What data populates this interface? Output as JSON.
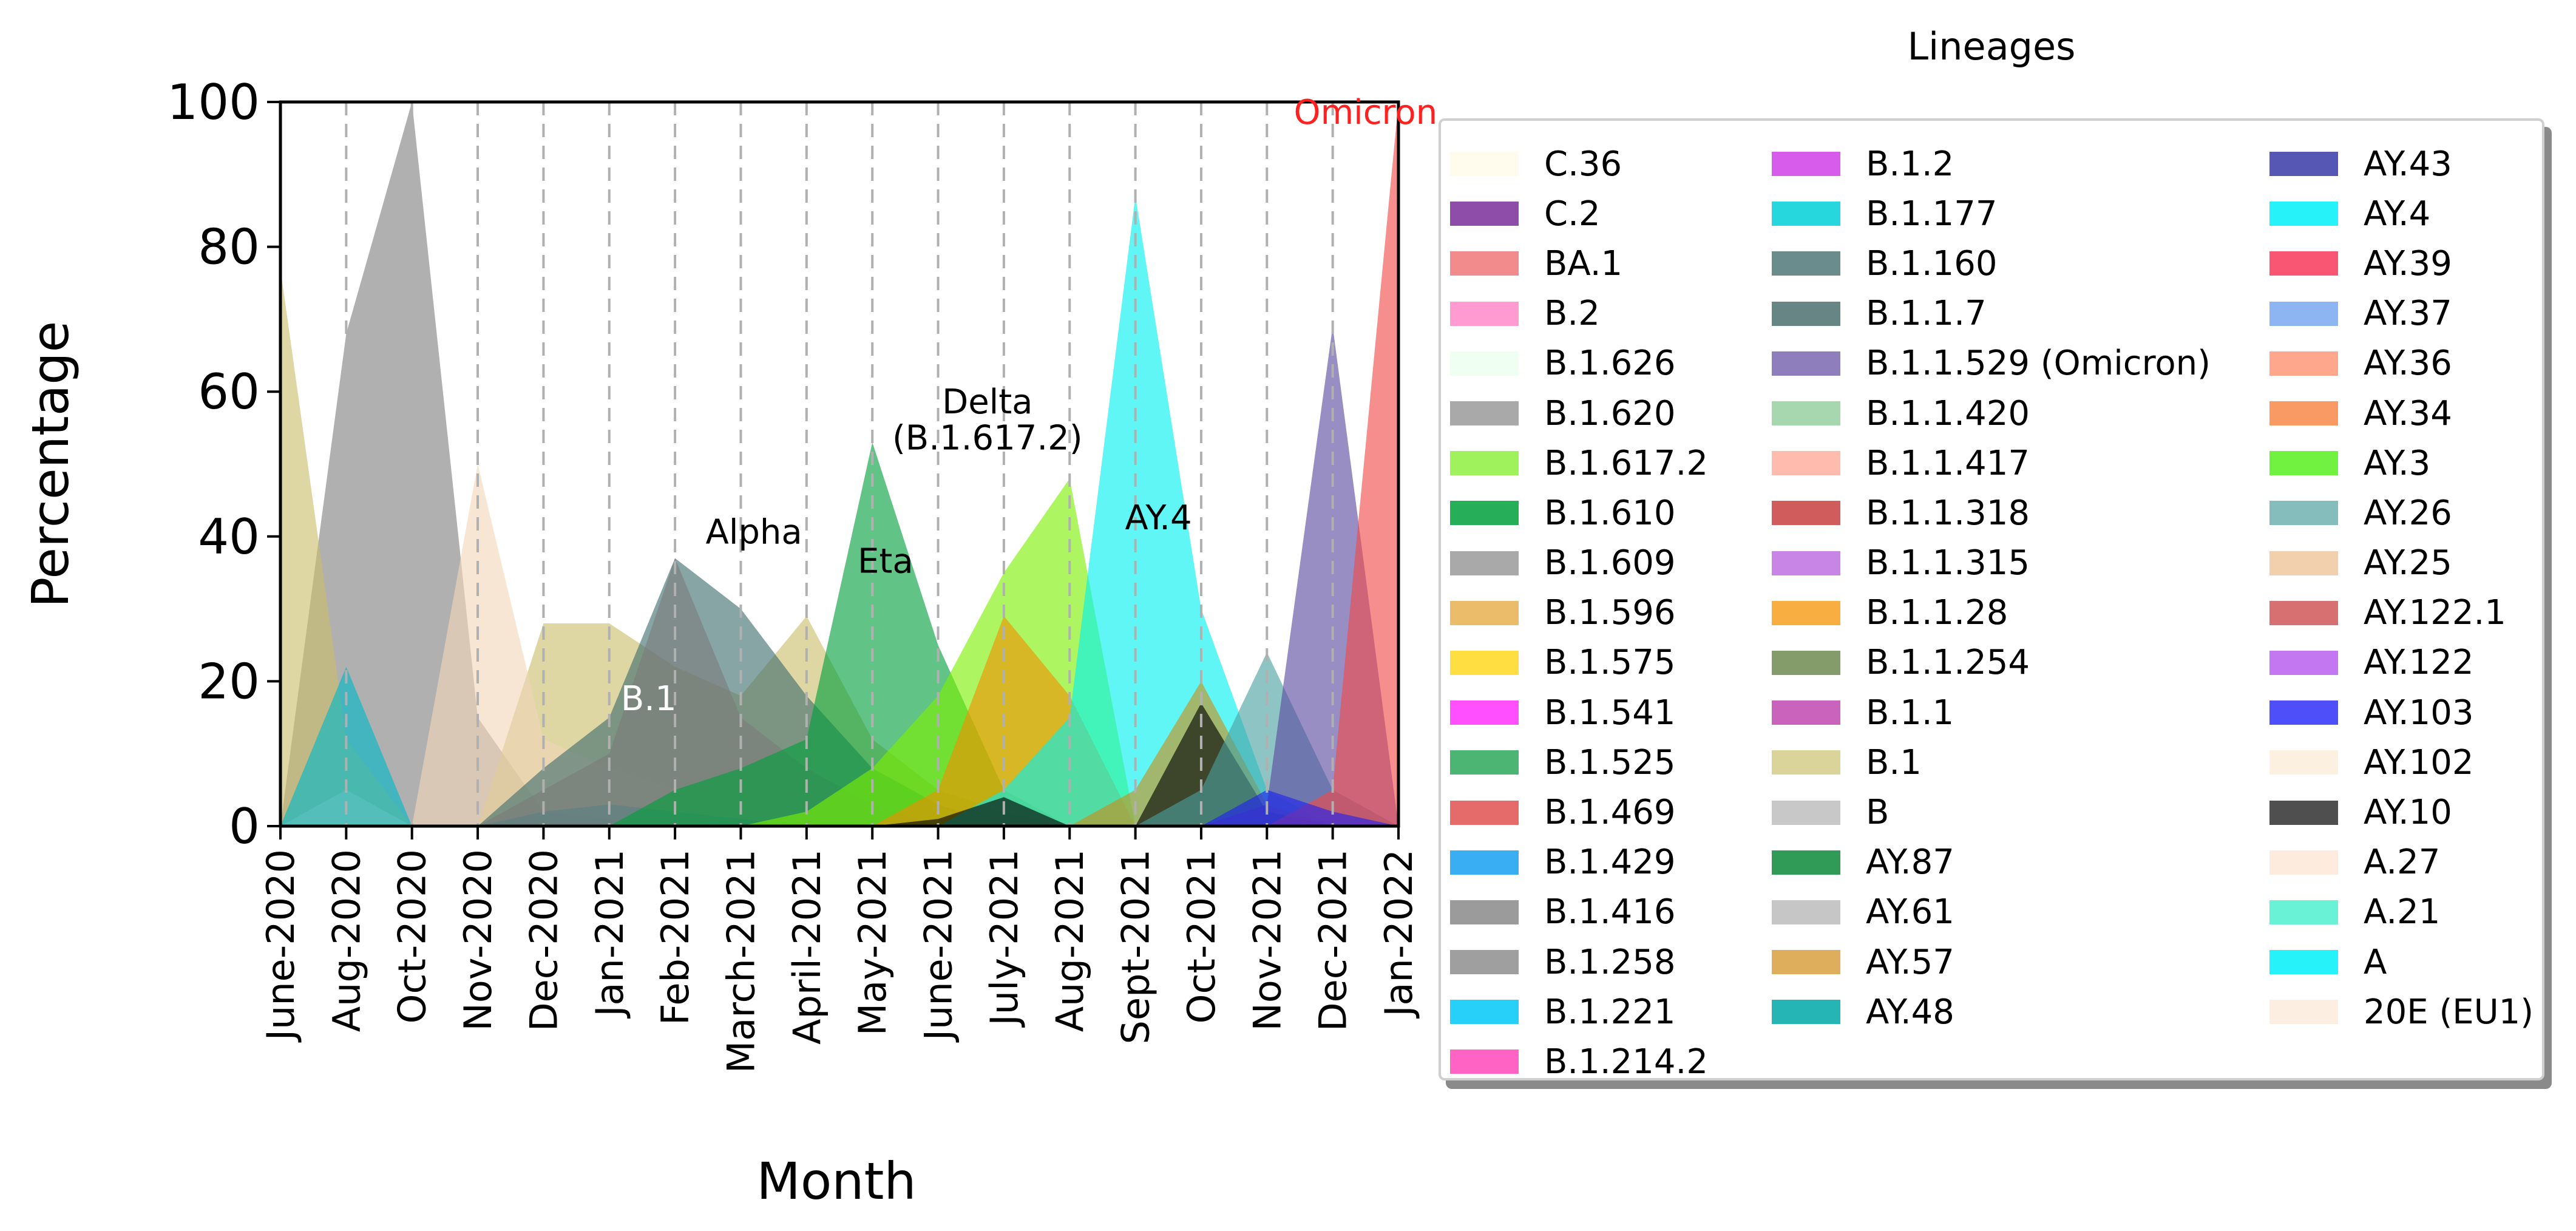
{
  "chart_data": {
    "type": "area",
    "title": "",
    "xlabel": "Month",
    "ylabel": "Percentage",
    "ylim": [
      0,
      100
    ],
    "yticks": [
      0,
      20,
      40,
      60,
      80,
      100
    ],
    "categories": [
      "June-2020",
      "Aug-2020",
      "Oct-2020",
      "Nov-2020",
      "Dec-2020",
      "Jan-2021",
      "Feb-2021",
      "March-2021",
      "April-2021",
      "May-2021",
      "June-2021",
      "July-2021",
      "Aug-2021",
      "Sept-2021",
      "Oct-2021",
      "Nov-2021",
      "Dec-2021",
      "Jan-2022"
    ],
    "grid": "vertical dashed",
    "annotations": [
      {
        "text": "Omicron",
        "x": 16.5,
        "y": 97,
        "color": "#ff2020"
      },
      {
        "text": "Delta",
        "x": 10.75,
        "y": 57,
        "color": "#000000"
      },
      {
        "text": "(B.1.617.2)",
        "x": 10.75,
        "y": 52,
        "color": "#000000"
      },
      {
        "text": "Alpha",
        "x": 7.2,
        "y": 39,
        "color": "#000000"
      },
      {
        "text": "Eta",
        "x": 9.2,
        "y": 35,
        "color": "#000000"
      },
      {
        "text": "AY.4",
        "x": 13.35,
        "y": 41,
        "color": "#000000"
      },
      {
        "text": "B.1",
        "x": 5.6,
        "y": 16,
        "color": "#ffffff"
      }
    ],
    "series": [
      {
        "name": "B.1.258",
        "color": "#808080",
        "values": [
          0,
          68,
          100,
          15,
          2,
          1,
          0,
          0,
          0,
          0,
          0,
          0,
          0,
          0,
          0,
          0,
          0,
          0
        ]
      },
      {
        "name": "B.1",
        "color": "#c9bd6b",
        "values": [
          77,
          12,
          0,
          0,
          28,
          28,
          22,
          18,
          29,
          12,
          5,
          2,
          0,
          0,
          0,
          0,
          0,
          0
        ]
      },
      {
        "name": "20E (EU1)",
        "color": "#f0d6b8",
        "values": [
          0,
          5,
          0,
          50,
          12,
          8,
          5,
          2,
          0,
          0,
          0,
          0,
          0,
          0,
          0,
          0,
          0,
          0
        ]
      },
      {
        "name": "B.1.177",
        "color": "#00b8c8",
        "values": [
          0,
          22,
          0,
          0,
          2,
          3,
          2,
          1,
          0,
          0,
          0,
          0,
          0,
          0,
          0,
          0,
          0,
          0
        ]
      },
      {
        "name": "B.1.1.7",
        "color": "#3f6e6e",
        "values": [
          0,
          0,
          0,
          0,
          8,
          15,
          37,
          30,
          18,
          8,
          3,
          0,
          0,
          0,
          0,
          0,
          0,
          0
        ]
      },
      {
        "name": "B.1.416",
        "color": "#7a7a7a",
        "values": [
          0,
          0,
          0,
          0,
          5,
          10,
          37,
          15,
          8,
          3,
          0,
          0,
          0,
          0,
          0,
          0,
          0,
          0
        ]
      },
      {
        "name": "B.1.525",
        "color": "#00a03c",
        "values": [
          0,
          0,
          0,
          0,
          0,
          0,
          5,
          8,
          12,
          53,
          25,
          5,
          0,
          0,
          0,
          0,
          0,
          0
        ]
      },
      {
        "name": "B.1.617.2",
        "color": "#7df000",
        "values": [
          0,
          0,
          0,
          0,
          0,
          0,
          0,
          0,
          2,
          8,
          18,
          35,
          48,
          0,
          0,
          0,
          0,
          0
        ]
      },
      {
        "name": "B.1.1.28",
        "color": "#f09000",
        "values": [
          0,
          0,
          0,
          0,
          0,
          0,
          0,
          0,
          0,
          0,
          5,
          29,
          18,
          0,
          0,
          0,
          0,
          0
        ]
      },
      {
        "name": "AY.4",
        "color": "#00f0f0",
        "values": [
          0,
          0,
          0,
          0,
          0,
          0,
          0,
          0,
          0,
          0,
          0,
          5,
          15,
          87,
          30,
          5,
          0,
          0
        ]
      },
      {
        "name": "AY.57",
        "color": "#c8901a",
        "values": [
          0,
          0,
          0,
          0,
          0,
          0,
          0,
          0,
          0,
          0,
          0,
          0,
          0,
          5,
          20,
          3,
          0,
          0
        ]
      },
      {
        "name": "AY.10",
        "color": "#000000",
        "values": [
          0,
          0,
          0,
          0,
          0,
          0,
          0,
          0,
          0,
          0,
          1,
          4,
          0,
          0,
          17,
          2,
          0,
          0
        ]
      },
      {
        "name": "AY.26",
        "color": "#4aa0a0",
        "values": [
          0,
          0,
          0,
          0,
          0,
          0,
          0,
          0,
          0,
          0,
          0,
          0,
          0,
          0,
          5,
          24,
          5,
          0
        ]
      },
      {
        "name": "B.1.1.529 (Omicron)",
        "color": "#5a48a0",
        "values": [
          0,
          0,
          0,
          0,
          0,
          0,
          0,
          0,
          0,
          0,
          0,
          0,
          0,
          0,
          0,
          3,
          69,
          0
        ]
      },
      {
        "name": "BA.1",
        "color": "#f04848",
        "values": [
          0,
          0,
          0,
          0,
          0,
          0,
          0,
          0,
          0,
          0,
          0,
          0,
          0,
          0,
          0,
          0,
          5,
          100
        ]
      },
      {
        "name": "AY.103",
        "color": "#2020f0",
        "values": [
          0,
          0,
          0,
          0,
          0,
          0,
          0,
          0,
          0,
          0,
          0,
          0,
          0,
          0,
          0,
          5,
          2,
          0
        ]
      }
    ]
  },
  "legend": {
    "title": "Lineages",
    "columns": [
      [
        {
          "label": "C.36",
          "color": "#fffbeb"
        },
        {
          "label": "C.2",
          "color": "#7a2e9a"
        },
        {
          "label": "BA.1",
          "color": "#f07878"
        },
        {
          "label": "B.2",
          "color": "#ff8ac8"
        },
        {
          "label": "B.1.626",
          "color": "#ecfff0"
        },
        {
          "label": "B.1.620",
          "color": "#9a9a9a"
        },
        {
          "label": "B.1.617.2",
          "color": "#8ef040"
        },
        {
          "label": "B.1.610",
          "color": "#00a03c"
        },
        {
          "label": "B.1.609",
          "color": "#9a9a9a"
        },
        {
          "label": "B.1.596",
          "color": "#e8b050"
        },
        {
          "label": "B.1.575",
          "color": "#ffd820"
        },
        {
          "label": "B.1.541",
          "color": "#ff30ff"
        },
        {
          "label": "B.1.525",
          "color": "#2ea85a"
        },
        {
          "label": "B.1.469",
          "color": "#e05050"
        },
        {
          "label": "B.1.429",
          "color": "#18a0f0"
        },
        {
          "label": "B.1.416",
          "color": "#8a8a8a"
        },
        {
          "label": "B.1.258",
          "color": "#8e8e8e"
        },
        {
          "label": "B.1.221",
          "color": "#00c8f8"
        },
        {
          "label": "B.1.214.2",
          "color": "#ff48b8"
        }
      ],
      [
        {
          "label": "B.1.2",
          "color": "#d040e8"
        },
        {
          "label": "B.1.177",
          "color": "#00d0d8"
        },
        {
          "label": "B.1.160",
          "color": "#507878"
        },
        {
          "label": "B.1.1.7",
          "color": "#4e7070"
        },
        {
          "label": "B.1.1.529 (Omicron)",
          "color": "#7a68b0"
        },
        {
          "label": "B.1.1.420",
          "color": "#98d0a0"
        },
        {
          "label": "B.1.1.417",
          "color": "#ffb0a0"
        },
        {
          "label": "B.1.1.318",
          "color": "#c84040"
        },
        {
          "label": "B.1.1.315",
          "color": "#c070e0"
        },
        {
          "label": "B.1.1.28",
          "color": "#f8a020"
        },
        {
          "label": "B.1.1.254",
          "color": "#6e8a50"
        },
        {
          "label": "B.1.1",
          "color": "#c048b0"
        },
        {
          "label": "B.1",
          "color": "#d4cc88"
        },
        {
          "label": "B",
          "color": "#bebebe"
        },
        {
          "label": "AY.87",
          "color": "#0a8a3a"
        },
        {
          "label": "AY.61",
          "color": "#bcbcbc"
        },
        {
          "label": "AY.57",
          "color": "#d8a040"
        },
        {
          "label": "AY.48",
          "color": "#00a8a8"
        }
      ],
      [
        {
          "label": "AY.43",
          "color": "#3838a8"
        },
        {
          "label": "AY.4",
          "color": "#00f0f8"
        },
        {
          "label": "AY.39",
          "color": "#f8385a"
        },
        {
          "label": "AY.37",
          "color": "#78a8f0"
        },
        {
          "label": "AY.36",
          "color": "#ff9878"
        },
        {
          "label": "AY.34",
          "color": "#f8884a"
        },
        {
          "label": "AY.3",
          "color": "#58f020"
        },
        {
          "label": "AY.26",
          "color": "#70b0b0"
        },
        {
          "label": "AY.25",
          "color": "#f0c8a0"
        },
        {
          "label": "AY.122.1",
          "color": "#d05858"
        },
        {
          "label": "AY.122",
          "color": "#b860f0"
        },
        {
          "label": "AY.103",
          "color": "#3030f8"
        },
        {
          "label": "AY.102",
          "color": "#fbeedc"
        },
        {
          "label": "AY.10",
          "color": "#303030"
        },
        {
          "label": "A.27",
          "color": "#fde8d8"
        },
        {
          "label": "A.21",
          "color": "#50f0d0"
        },
        {
          "label": "A",
          "color": "#00f0f8"
        },
        {
          "label": "20E (EU1)",
          "color": "#fcebdc"
        }
      ]
    ]
  }
}
